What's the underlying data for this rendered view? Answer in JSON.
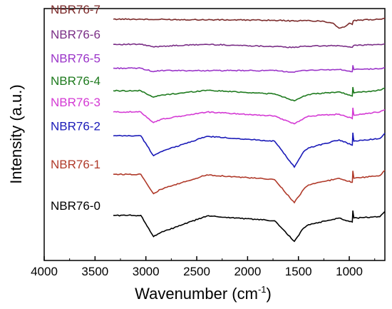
{
  "chart_data": {
    "type": "line",
    "title": "",
    "xlabel": "Wavenumber (cm",
    "xlabel_superscript": "-1",
    "xlabel_close": ")",
    "ylabel": "Intensity (a.u.)",
    "xlim": [
      4000,
      650
    ],
    "x_reversed": true,
    "x_ticks": [
      4000,
      3500,
      3000,
      2500,
      2000,
      1500,
      1000
    ],
    "y_ticks_shown": false,
    "grid": false,
    "legend": "inline labels at left of each trace",
    "series": [
      {
        "name": "NBR76-7",
        "color": "#7b2a2a",
        "baseline": 7.2,
        "points": [
          [
            3050,
            7.2
          ],
          [
            2925,
            7.18
          ],
          [
            2860,
            7.19
          ],
          [
            1735,
            7.16
          ],
          [
            1540,
            7.13
          ],
          [
            1450,
            7.15
          ],
          [
            1250,
            7.12
          ],
          [
            1160,
            7.05
          ],
          [
            1100,
            6.86
          ],
          [
            1050,
            6.9
          ],
          [
            1000,
            7.05
          ],
          [
            970,
            7.0
          ],
          [
            960,
            7.14
          ],
          [
            900,
            7.16
          ],
          [
            700,
            7.2
          ],
          [
            650,
            7.24
          ]
        ]
      },
      {
        "name": "NBR76-6",
        "color": "#7a2e86",
        "baseline": 6.25,
        "points": [
          [
            3050,
            6.25
          ],
          [
            2920,
            6.15
          ],
          [
            2850,
            6.18
          ],
          [
            2400,
            6.25
          ],
          [
            1735,
            6.17
          ],
          [
            1540,
            6.13
          ],
          [
            1450,
            6.18
          ],
          [
            1100,
            6.2
          ],
          [
            970,
            6.14
          ],
          [
            950,
            6.22
          ],
          [
            700,
            6.24
          ],
          [
            650,
            6.27
          ]
        ]
      },
      {
        "name": "NBR76-5",
        "color": "#9b35c9",
        "baseline": 5.35,
        "points": [
          [
            3050,
            5.35
          ],
          [
            2925,
            5.22
          ],
          [
            2855,
            5.26
          ],
          [
            1735,
            5.26
          ],
          [
            1540,
            5.2
          ],
          [
            1450,
            5.27
          ],
          [
            1100,
            5.3
          ],
          [
            970,
            5.22
          ],
          [
            965,
            5.46
          ],
          [
            955,
            5.3
          ],
          [
            700,
            5.33
          ],
          [
            650,
            5.38
          ]
        ]
      },
      {
        "name": "NBR76-4",
        "color": "#1e7a1e",
        "baseline": 4.5,
        "points": [
          [
            3050,
            4.5
          ],
          [
            2925,
            4.26
          ],
          [
            2855,
            4.33
          ],
          [
            2400,
            4.52
          ],
          [
            1735,
            4.38
          ],
          [
            1540,
            4.12
          ],
          [
            1450,
            4.3
          ],
          [
            1400,
            4.36
          ],
          [
            1100,
            4.46
          ],
          [
            970,
            4.3
          ],
          [
            965,
            4.64
          ],
          [
            955,
            4.42
          ],
          [
            700,
            4.52
          ],
          [
            650,
            4.6
          ]
        ]
      },
      {
        "name": "NBR76-3",
        "color": "#d43ad4",
        "baseline": 3.7,
        "points": [
          [
            3050,
            3.7
          ],
          [
            2925,
            3.3
          ],
          [
            2855,
            3.42
          ],
          [
            2400,
            3.7
          ],
          [
            1735,
            3.55
          ],
          [
            1540,
            3.25
          ],
          [
            1450,
            3.45
          ],
          [
            1400,
            3.55
          ],
          [
            1100,
            3.62
          ],
          [
            970,
            3.45
          ],
          [
            965,
            3.86
          ],
          [
            955,
            3.58
          ],
          [
            700,
            3.7
          ],
          [
            650,
            3.78
          ]
        ]
      },
      {
        "name": "NBR76-2",
        "color": "#1a1ab8",
        "baseline": 2.8,
        "points": [
          [
            3050,
            2.8
          ],
          [
            2925,
            2.05
          ],
          [
            2855,
            2.2
          ],
          [
            2400,
            2.78
          ],
          [
            1735,
            2.6
          ],
          [
            1540,
            1.62
          ],
          [
            1450,
            2.2
          ],
          [
            1400,
            2.35
          ],
          [
            1100,
            2.65
          ],
          [
            970,
            2.45
          ],
          [
            965,
            2.92
          ],
          [
            955,
            2.6
          ],
          [
            700,
            2.7
          ],
          [
            650,
            2.9
          ]
        ]
      },
      {
        "name": "NBR76-1",
        "color": "#b03a2a",
        "baseline": 1.35,
        "points": [
          [
            3050,
            1.35
          ],
          [
            2925,
            0.62
          ],
          [
            2855,
            0.78
          ],
          [
            2400,
            1.33
          ],
          [
            1735,
            1.15
          ],
          [
            1540,
            0.28
          ],
          [
            1450,
            0.78
          ],
          [
            1400,
            0.95
          ],
          [
            1100,
            1.2
          ],
          [
            970,
            1.05
          ],
          [
            965,
            1.48
          ],
          [
            955,
            1.2
          ],
          [
            700,
            1.3
          ],
          [
            650,
            1.5
          ]
        ]
      },
      {
        "name": "NBR76-0",
        "color": "#000000",
        "baseline": -0.2,
        "points": [
          [
            3050,
            -0.2
          ],
          [
            2925,
            -1.0
          ],
          [
            2855,
            -0.85
          ],
          [
            2400,
            -0.22
          ],
          [
            1735,
            -0.4
          ],
          [
            1540,
            -1.18
          ],
          [
            1450,
            -0.68
          ],
          [
            1400,
            -0.55
          ],
          [
            1100,
            -0.3
          ],
          [
            970,
            -0.45
          ],
          [
            965,
            -0.02
          ],
          [
            955,
            -0.3
          ],
          [
            700,
            -0.25
          ],
          [
            650,
            -0.05
          ]
        ]
      }
    ]
  }
}
